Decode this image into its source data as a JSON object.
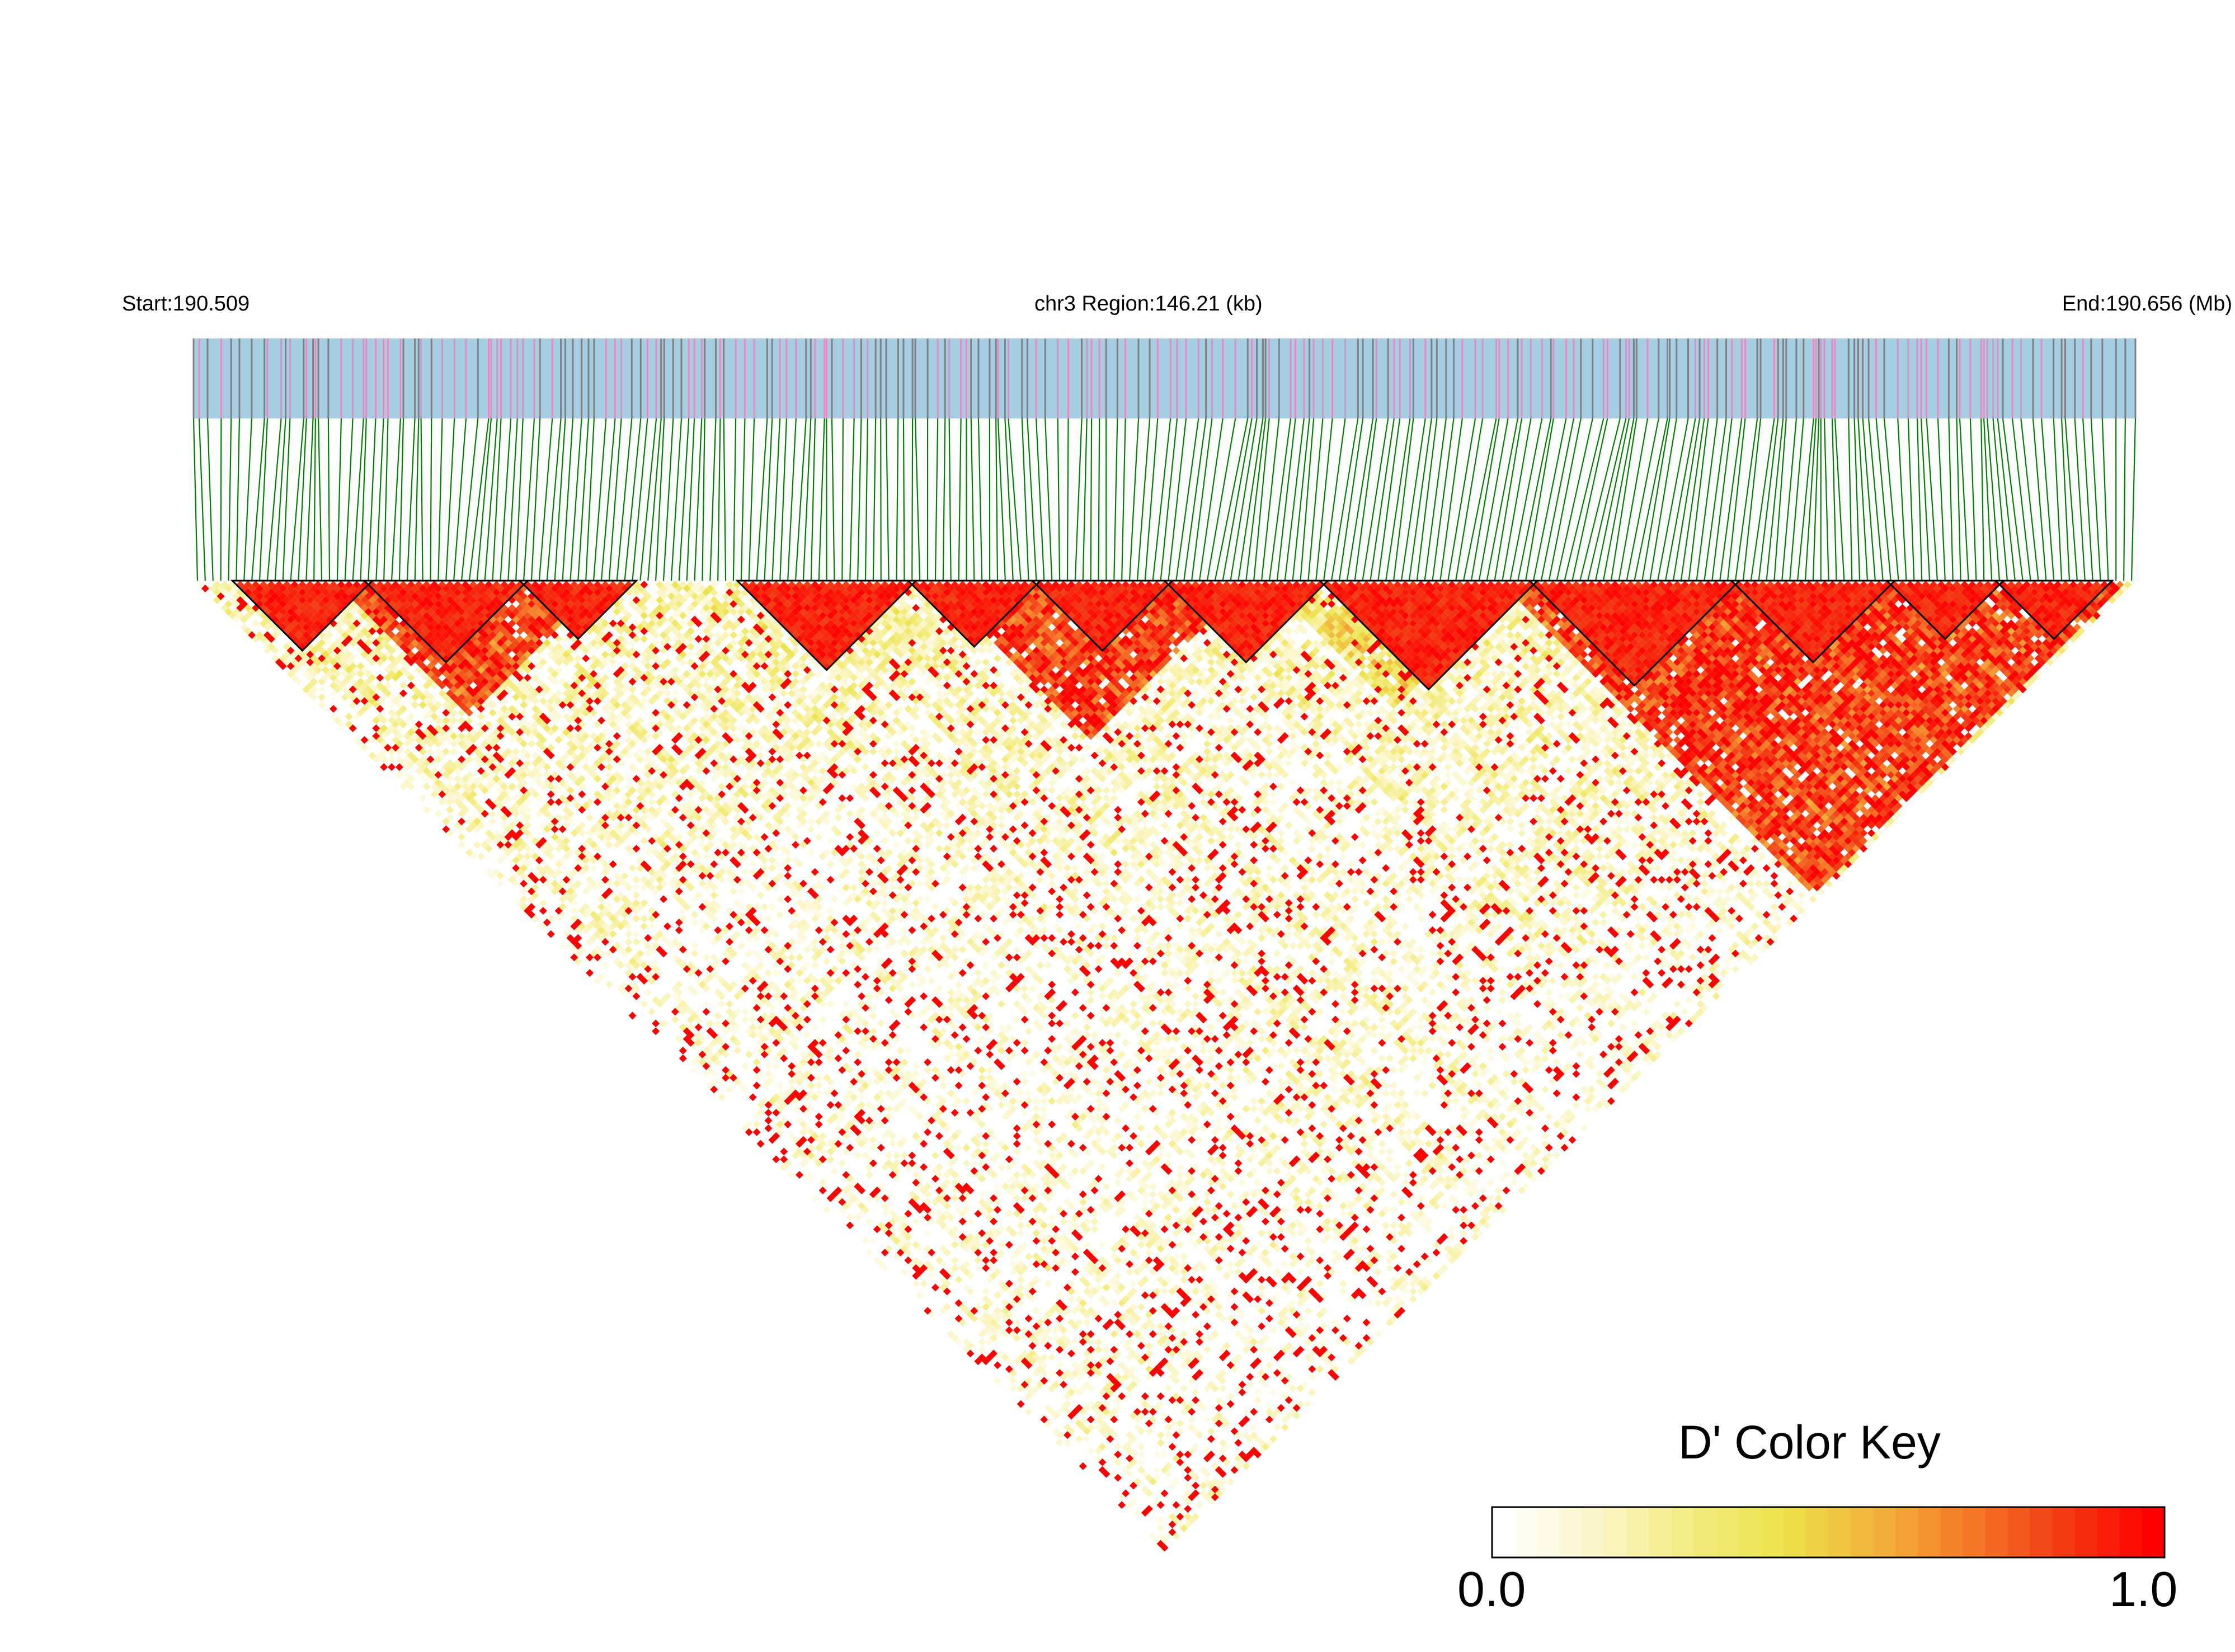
{
  "header": {
    "start": "Start:190.509",
    "region": "chr3 Region:146.21 (kb)",
    "end": "End:190.656 (Mb)"
  },
  "colors": {
    "track_bg": "#a6cee3",
    "snp_pink": "#e78ac3",
    "snp_gray": "#808080",
    "connector": "#008000",
    "block_outline": "#000000",
    "scale": [
      "#ffffff",
      "#fbf6c8",
      "#f4ec82",
      "#ebe34a",
      "#f2b43c",
      "#f57a28",
      "#f23c14",
      "#ff0000"
    ]
  },
  "chart_data": {
    "type": "heatmap",
    "title": "",
    "xlabel": "",
    "ylabel": "",
    "chromosome": "chr3",
    "region_start_mb": 190.509,
    "region_end_mb": 190.656,
    "region_size_kb": 146.21,
    "n_snps": 250,
    "ld_blocks": [
      [
        5,
        22
      ],
      [
        22,
        42
      ],
      [
        42,
        56
      ],
      [
        70,
        92
      ],
      [
        92,
        108
      ],
      [
        108,
        125
      ],
      [
        125,
        145
      ],
      [
        145,
        172
      ],
      [
        172,
        198
      ],
      [
        198,
        218
      ],
      [
        218,
        232
      ],
      [
        232,
        246
      ]
    ],
    "high_ld_regions": [
      {
        "snp_range": [
          18,
          52
        ],
        "level": 0.85
      },
      {
        "snp_range": [
          95,
          135
        ],
        "level": 0.85
      },
      {
        "snp_range": [
          168,
          248
        ],
        "level": 0.85
      },
      {
        "snp_range": [
          138,
          170
        ],
        "level": 0.4
      }
    ],
    "color_key": {
      "title": "D' Color Key",
      "min_label": "0.0",
      "max_label": "1.0",
      "min": 0.0,
      "max": 1.0
    }
  }
}
